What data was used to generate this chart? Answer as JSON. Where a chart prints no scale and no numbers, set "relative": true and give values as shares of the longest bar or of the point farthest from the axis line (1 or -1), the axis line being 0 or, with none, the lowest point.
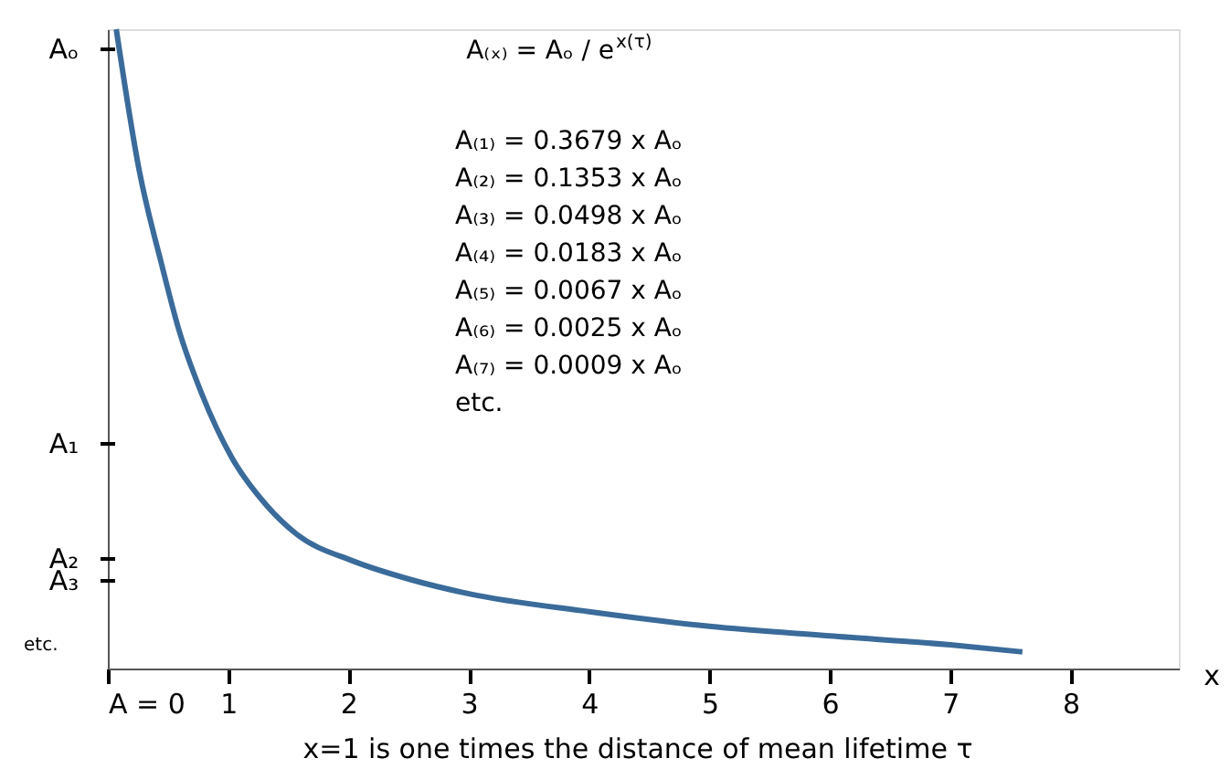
{
  "chart_data": {
    "type": "line",
    "relative": true,
    "xlabel": "x=1 is one times the distance of mean lifetime τ",
    "x2label": "x",
    "xlim": [
      0,
      8.9
    ],
    "xticks": [
      {
        "value": 0,
        "label": "A = 0"
      },
      1,
      2,
      3,
      4,
      5,
      6,
      7,
      8
    ],
    "series": [
      {
        "color": "#3a6b9a",
        "x": [
          0.07,
          0.26,
          0.45,
          0.59,
          0.78,
          1.03,
          1.32,
          1.57,
          2.04,
          2.5,
          3,
          4,
          5,
          6,
          7,
          7.6
        ],
        "values": [
          1,
          0.78,
          0.63,
          0.53,
          0.43,
          0.33,
          0.255,
          0.21,
          0.168,
          0.14,
          0.117,
          0.089,
          0.066,
          0.051,
          0.037,
          0.026
        ]
      }
    ],
    "annotations": [
      "Aₒ",
      "A₁",
      "A₂",
      "A₃",
      "A₍ₓ₎ = Aₒ / e$^{x(τ)}$",
      "A₍₁₎ = 0.3679 x Aₒ",
      "A₍₂₎ = 0.1353 x Aₒ",
      "A₍₃₎ = 0.0498 x Aₒ",
      "A₍₄₎ = 0.0183 x Aₒ",
      "A₍₅₎ = 0.0067 x Aₒ",
      "A₍₆₎ = 0.0025 x Aₒ",
      "A₍₇₎ = 0.0009 x Aₒ",
      "etc.",
      "etc."
    ],
    "grid": false,
    "marker": "none",
    "line_style": "solid"
  }
}
